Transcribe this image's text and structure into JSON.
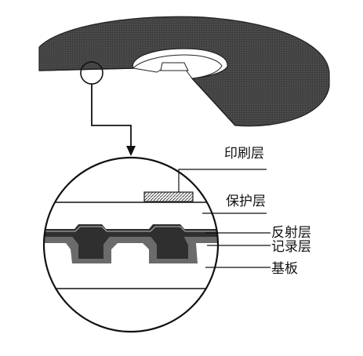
{
  "labels": {
    "print_layer": "印刷层",
    "protective_layer": "保护层",
    "reflective_layer": "反射层",
    "recording_layer": "记录层",
    "substrate": "基板"
  },
  "colors": {
    "disc_fill": "#4a4a4a",
    "line": "#111111",
    "background": "#ffffff",
    "print_pattern": "#555555"
  }
}
